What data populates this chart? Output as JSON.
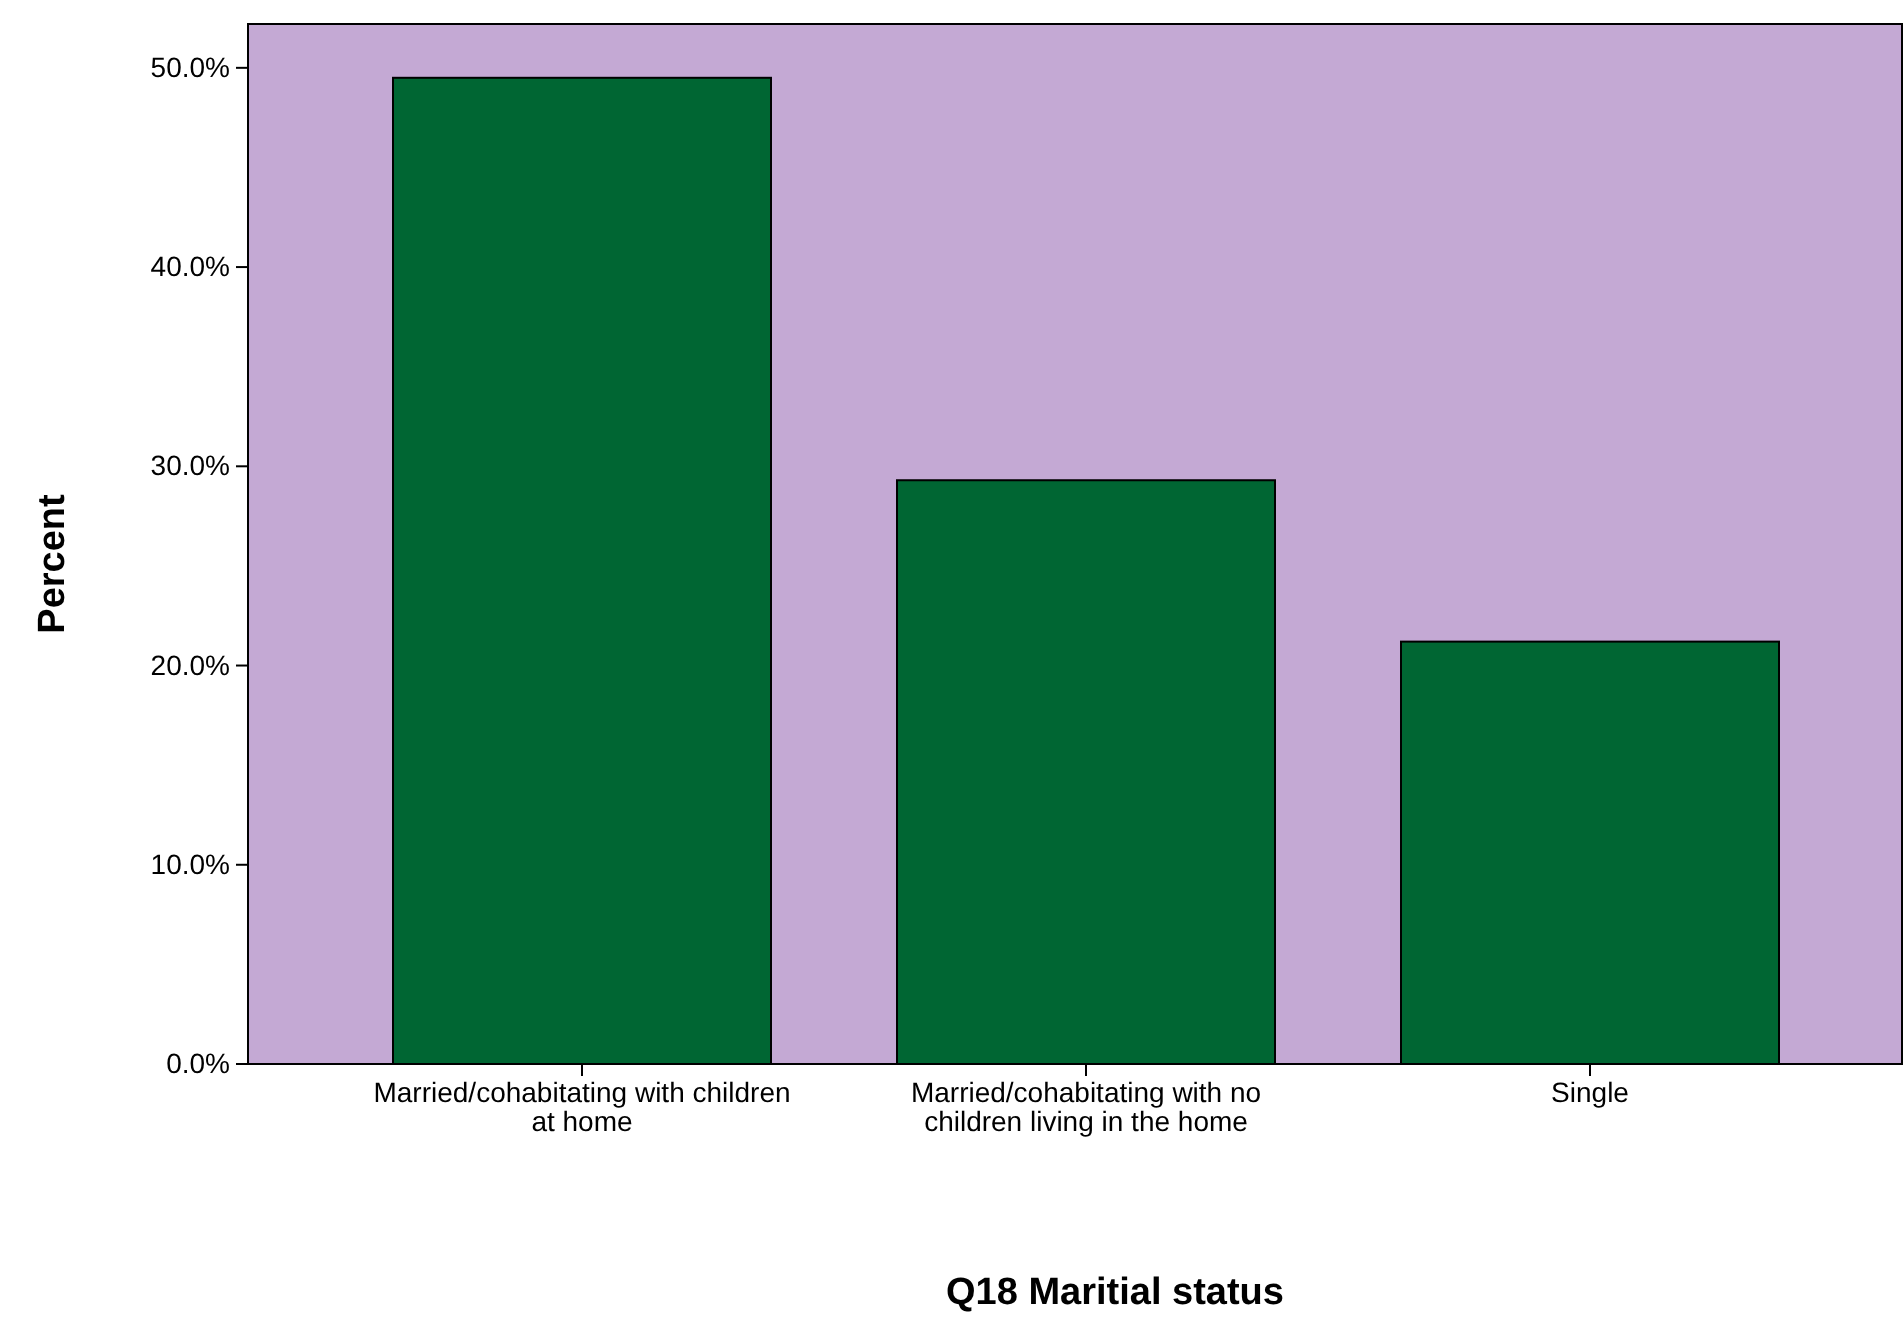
{
  "chart_data": {
    "type": "bar",
    "xlabel": "Q18 Maritial status",
    "ylabel": "Percent",
    "categories": [
      "Married/cohabitating with children at home",
      "Married/cohabitating with no children living in the home",
      "Single"
    ],
    "values": [
      49.5,
      29.3,
      21.2
    ],
    "color": "#006633",
    "ylim": [
      0,
      52.2
    ],
    "yticks": [
      {
        "value": 0,
        "label": "0.0%"
      },
      {
        "value": 10,
        "label": "10.0%"
      },
      {
        "value": 20,
        "label": "20.0%"
      },
      {
        "value": 30,
        "label": "30.0%"
      },
      {
        "value": 40,
        "label": "40.0%"
      },
      {
        "value": 50,
        "label": "50.0%"
      }
    ],
    "grid": false
  }
}
